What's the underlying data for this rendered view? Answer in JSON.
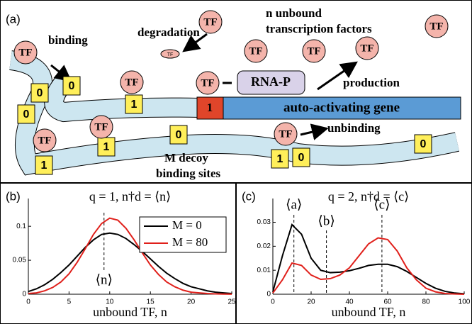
{
  "diagram": {
    "panel_label": "(a)",
    "tf_label": "TF",
    "binding": "binding",
    "degradation": "degradation",
    "unbound_line1": "n unbound",
    "unbound_line2": "transcription factors",
    "rna_p": "RNA-P",
    "production": "production",
    "gene_site": "1",
    "gene": "auto-activating gene",
    "unbinding": "unbinding",
    "decoy_line1": "M decoy",
    "decoy_line2": "binding sites",
    "sites": [
      "0",
      "0",
      "0",
      "1",
      "1",
      "1",
      "0",
      "1",
      "0",
      "0"
    ]
  },
  "chart_data": [
    {
      "type": "line",
      "panel_label": "(b)",
      "title": "q = 1, n†d = ⟨n⟩",
      "xlabel": "unbound TF, n",
      "x": [
        0,
        1,
        2,
        3,
        4,
        5,
        6,
        7,
        8,
        9,
        10,
        11,
        12,
        13,
        14,
        15,
        16,
        17,
        18,
        19,
        20,
        21,
        22,
        23,
        24,
        25
      ],
      "series": [
        {
          "name": "M = 0",
          "color": "#000000",
          "values": [
            0.004,
            0.008,
            0.014,
            0.022,
            0.032,
            0.043,
            0.056,
            0.069,
            0.08,
            0.088,
            0.09,
            0.088,
            0.082,
            0.073,
            0.063,
            0.052,
            0.041,
            0.031,
            0.023,
            0.016,
            0.011,
            0.008,
            0.005,
            0.003,
            0.002,
            0.001
          ]
        },
        {
          "name": "M = 80",
          "color": "#e0201b",
          "values": [
            0.001,
            0.002,
            0.005,
            0.01,
            0.018,
            0.03,
            0.047,
            0.067,
            0.088,
            0.104,
            0.112,
            0.109,
            0.097,
            0.08,
            0.061,
            0.043,
            0.029,
            0.018,
            0.011,
            0.006,
            0.003,
            0.002,
            0.001,
            0.0005,
            0.0002,
            0.0001
          ]
        }
      ],
      "xlim": [
        0,
        25
      ],
      "xticks": [
        0,
        5,
        10,
        15,
        20,
        25
      ],
      "ylim": [
        0,
        0.12
      ],
      "yticks": [
        0,
        0.05,
        0.1
      ],
      "legend": "upper right",
      "vlines": [
        {
          "x": 9.3,
          "label": "⟨n⟩"
        }
      ]
    },
    {
      "type": "line",
      "panel_label": "(c)",
      "title": "q = 2, n†d = ⟨c⟩",
      "xlabel": "unbound TF, n",
      "x": [
        0,
        5,
        10,
        15,
        20,
        25,
        30,
        35,
        40,
        45,
        50,
        55,
        60,
        65,
        70,
        75,
        80,
        85,
        90,
        95,
        100
      ],
      "series": [
        {
          "name": "M = 0",
          "color": "#000000",
          "values": [
            0.001,
            0.016,
            0.029,
            0.025,
            0.015,
            0.01,
            0.009,
            0.0092,
            0.0098,
            0.0108,
            0.012,
            0.0125,
            0.0125,
            0.0115,
            0.0095,
            0.007,
            0.0045,
            0.0025,
            0.0012,
            0.0005,
            0.0002
          ]
        },
        {
          "name": "M = 80",
          "color": "#e0201b",
          "values": [
            0.0005,
            0.006,
            0.013,
            0.012,
            0.008,
            0.0062,
            0.0065,
            0.008,
            0.011,
            0.016,
            0.021,
            0.0235,
            0.0228,
            0.018,
            0.011,
            0.006,
            0.0025,
            0.001,
            0.0003,
            0.0001,
            0
          ]
        }
      ],
      "xlim": [
        0,
        100
      ],
      "xticks": [
        0,
        20,
        40,
        60,
        80,
        100
      ],
      "ylim": [
        0,
        0.034
      ],
      "yticks": [
        0,
        0.01,
        0.02,
        0.03
      ],
      "vlines": [
        {
          "x": 11,
          "label": "⟨a⟩"
        },
        {
          "x": 28,
          "label": "⟨b⟩"
        },
        {
          "x": 57,
          "label": "⟨c⟩"
        }
      ]
    }
  ]
}
